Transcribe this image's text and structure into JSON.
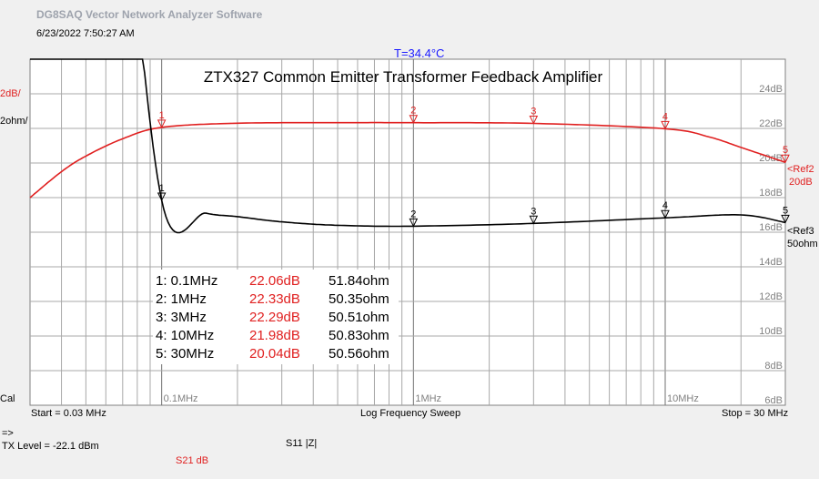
{
  "app_title": "DG8SAQ Vector Network Analyzer Software",
  "timestamp": "6/23/2022   7:50:27 AM",
  "temperature": "T=34.4°C",
  "chart_data": {
    "type": "line",
    "title": "ZTX327 Common Emitter Transformer Feedback Amplifier",
    "x_scale": "log",
    "xlim": [
      0.03,
      30
    ],
    "x_unit": "MHz",
    "decade_labels": [
      "0.1MHz",
      "1MHz",
      "10MHz"
    ],
    "y_tick_labels": [
      "24dB",
      "22dB",
      "20dB",
      "18dB",
      "16dB",
      "14dB",
      "12dB",
      "10dB",
      "8dB",
      "6dB"
    ],
    "ylim_db": [
      6,
      26
    ],
    "grid": true,
    "series": [
      {
        "name": "S21 dB",
        "color": "#e02020",
        "x": [
          0.03,
          0.04,
          0.05,
          0.07,
          0.1,
          0.2,
          0.5,
          1,
          3,
          10,
          15,
          20,
          30
        ],
        "y": [
          18.0,
          19.5,
          20.4,
          21.4,
          22.06,
          22.3,
          22.33,
          22.33,
          22.29,
          21.98,
          21.5,
          20.9,
          20.04
        ]
      },
      {
        "name": "S11 |Z|",
        "color": "#000000",
        "x": [
          0.03,
          0.04,
          0.05,
          0.06,
          0.07,
          0.1,
          0.15,
          0.2,
          0.3,
          0.5,
          1,
          3,
          10,
          20,
          30
        ],
        "y": [
          250,
          190,
          130,
          95,
          74,
          51.84,
          51.1,
          50.9,
          50.6,
          50.4,
          50.35,
          50.51,
          50.83,
          51.0,
          50.56
        ]
      }
    ],
    "left_labels": {
      "red": "2dB/",
      "black": "2ohm/",
      "cal": "Cal"
    },
    "ref_labels": [
      {
        "name": "Ref2",
        "value": "20dB",
        "color": "#e02020"
      },
      {
        "name": "Ref3",
        "value": "50ohm",
        "color": "#000000"
      }
    ],
    "markers": [
      {
        "num": "1",
        "freq": 0.1,
        "label": "1: 0.1MHz",
        "db": "22.06dB",
        "db_val": 22.06,
        "ohm": "51.84ohm",
        "ohm_val": 51.84
      },
      {
        "num": "2",
        "freq": 1,
        "label": "2: 1MHz",
        "db": "22.33dB",
        "db_val": 22.33,
        "ohm": "50.35ohm",
        "ohm_val": 50.35
      },
      {
        "num": "3",
        "freq": 3,
        "label": "3: 3MHz",
        "db": "22.29dB",
        "db_val": 22.29,
        "ohm": "50.51ohm",
        "ohm_val": 50.51
      },
      {
        "num": "4",
        "freq": 10,
        "label": "4: 10MHz",
        "db": "21.98dB",
        "db_val": 21.98,
        "ohm": "50.83ohm",
        "ohm_val": 50.83
      },
      {
        "num": "5",
        "freq": 30,
        "label": "5: 30MHz",
        "db": "20.04dB",
        "db_val": 20.04,
        "ohm": "50.56ohm",
        "ohm_val": 50.56
      }
    ]
  },
  "footer": {
    "start": "Start = 0.03 MHz",
    "sweep": "Log Frequency Sweep",
    "stop": "Stop = 30 MHz",
    "arrow": "=>",
    "tx_level": "TX Level = -22.1 dBm",
    "s11": "S11  |Z|",
    "s21": "S21  dB"
  }
}
